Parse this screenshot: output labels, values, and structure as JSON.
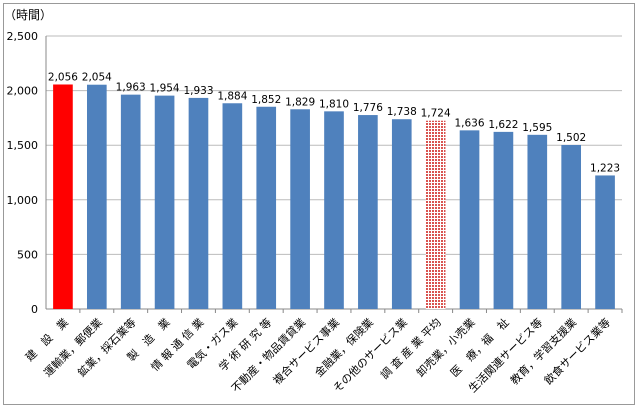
{
  "chart_data": {
    "type": "bar",
    "ylabel": "（時間）",
    "ylim": [
      0,
      2500
    ],
    "yticks": [
      "0",
      "500",
      "1,000",
      "1,500",
      "2,000",
      "2,500"
    ],
    "grid": true,
    "categories": [
      "建　設　業",
      "運輸業，郵便業",
      "鉱業，採石業等",
      "製　造　業",
      "情 報 通 信 業",
      "電気・ガス業",
      "学 術 研 究 等",
      "不動産・物品賃貸業",
      "複合サービス事業",
      "金融業，保険業",
      "その他のサービス業",
      "調 査 産 業 平均",
      "卸売業，小売業",
      "医　療，福　祉",
      "生活関連サービス等",
      "教育，学習支援業",
      "飲食サービス業等"
    ],
    "values": [
      2056,
      2054,
      1963,
      1954,
      1933,
      1884,
      1852,
      1829,
      1810,
      1776,
      1738,
      1724,
      1636,
      1622,
      1595,
      1502,
      1223
    ],
    "labels": [
      "2,056",
      "2,054",
      "1,963",
      "1,954",
      "1,933",
      "1,884",
      "1,852",
      "1,829",
      "1,810",
      "1,776",
      "1,738",
      "1,724",
      "1,636",
      "1,622",
      "1,595",
      "1,502",
      "1,223"
    ],
    "colors": {
      "default": "#4f81bd",
      "highlight": "#ff0000",
      "average": "#e06666"
    }
  }
}
